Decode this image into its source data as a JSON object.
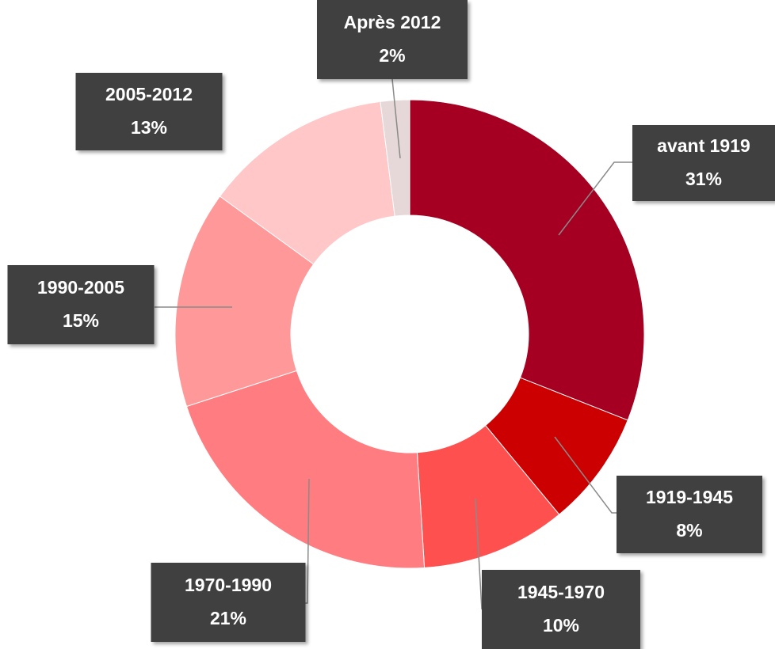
{
  "chart_data": {
    "type": "donut",
    "categories": [
      "avant 1919",
      "1919-1945",
      "1945-1970",
      "1970-1990",
      "1990-2005",
      "2005-2012",
      "Après 2012"
    ],
    "values": [
      31,
      8,
      10,
      21,
      15,
      13,
      2
    ],
    "value_labels": [
      "31%",
      "8%",
      "10%",
      "21%",
      "15%",
      "13%",
      "2%"
    ],
    "colors": [
      "#a50021",
      "#cc0000",
      "#ff5050",
      "#ff7c80",
      "#ff9999",
      "#ffc7c7",
      "#e6d8d8"
    ]
  }
}
